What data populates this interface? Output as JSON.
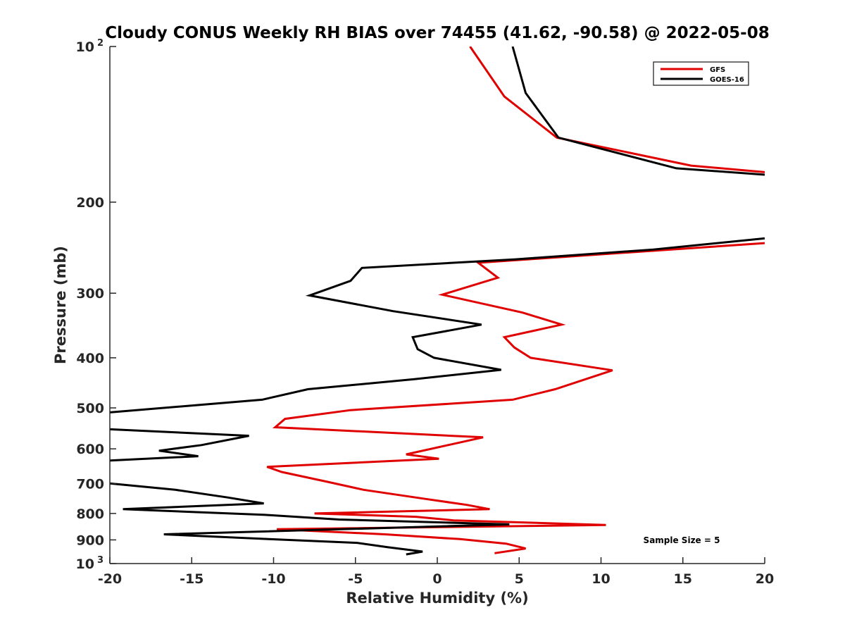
{
  "chart_data": {
    "type": "line",
    "title": "Cloudy CONUS Weekly RH BIAS over 74455 (41.62, -90.58) @ 2022-05-08",
    "xlabel": "Relative Humidity (%)",
    "ylabel": "Pressure (mb)",
    "xlim": [
      -20,
      20
    ],
    "ylim": [
      100,
      1000
    ],
    "y_scale": "log",
    "y_reversed": true,
    "grid": false,
    "legend_position": "top-right",
    "xticks": [
      "-20",
      "-15",
      "-10",
      "-5",
      "0",
      "5",
      "10",
      "15",
      "20"
    ],
    "xtick_values": [
      -20,
      -15,
      -10,
      -5,
      0,
      5,
      10,
      15,
      20
    ],
    "yticks": [
      {
        "value": 100,
        "label": "10",
        "sup": "2"
      },
      {
        "value": 200,
        "label": "200",
        "sup": ""
      },
      {
        "value": 300,
        "label": "300",
        "sup": ""
      },
      {
        "value": 400,
        "label": "400",
        "sup": ""
      },
      {
        "value": 500,
        "label": "500",
        "sup": ""
      },
      {
        "value": 600,
        "label": "600",
        "sup": ""
      },
      {
        "value": 700,
        "label": "700",
        "sup": ""
      },
      {
        "value": 800,
        "label": "800",
        "sup": ""
      },
      {
        "value": 900,
        "label": "900",
        "sup": ""
      },
      {
        "value": 1000,
        "label": "10",
        "sup": "3"
      }
    ],
    "annotation": "Sample Size = 5",
    "series": [
      {
        "name": "GFS",
        "color": "#e00000",
        "points": [
          [
            2.0,
            100
          ],
          [
            4.1,
            125
          ],
          [
            7.3,
            150
          ],
          [
            15.5,
            170
          ],
          [
            20,
            175
          ],
          [
            null,
            null
          ],
          [
            20,
            240
          ],
          [
            2.5,
            262
          ],
          [
            3.7,
            280
          ],
          [
            0.3,
            302
          ],
          [
            5.2,
            327
          ],
          [
            7.6,
            345
          ],
          [
            4.1,
            365
          ],
          [
            4.7,
            382
          ],
          [
            5.7,
            400
          ],
          [
            10.7,
            423
          ],
          [
            7.2,
            460
          ],
          [
            4.6,
            482
          ],
          [
            -5.3,
            505
          ],
          [
            -9.3,
            525
          ],
          [
            -9.9,
            545
          ],
          [
            2.8,
            570
          ],
          [
            -1.9,
            615
          ],
          [
            0.1,
            627
          ],
          [
            -10.4,
            650
          ],
          [
            -9.5,
            665
          ],
          [
            -6.7,
            695
          ],
          [
            -4.5,
            720
          ],
          [
            -0.7,
            750
          ],
          [
            1.8,
            770
          ],
          [
            3.2,
            785
          ],
          [
            -7.5,
            800
          ],
          [
            -1.3,
            812
          ],
          [
            1.0,
            825
          ],
          [
            10.3,
            842
          ],
          [
            -9.8,
            858
          ],
          [
            -3.2,
            878
          ],
          [
            1.4,
            897
          ],
          [
            4.2,
            915
          ],
          [
            5.4,
            935
          ],
          [
            3.5,
            955
          ]
        ]
      },
      {
        "name": "GOES-16",
        "color": "#000000",
        "points": [
          [
            4.6,
            100
          ],
          [
            5.4,
            123
          ],
          [
            7.4,
            150
          ],
          [
            14.6,
            172
          ],
          [
            20,
            177
          ],
          [
            null,
            null
          ],
          [
            20,
            235
          ],
          [
            13.2,
            247
          ],
          [
            4.8,
            258
          ],
          [
            -4.6,
            268
          ],
          [
            -5.3,
            284
          ],
          [
            -7.8,
            303
          ],
          [
            -2.7,
            325
          ],
          [
            2.7,
            345
          ],
          [
            -1.5,
            365
          ],
          [
            -1.2,
            385
          ],
          [
            -0.2,
            400
          ],
          [
            3.9,
            422
          ],
          [
            -1.4,
            440
          ],
          [
            -7.9,
            460
          ],
          [
            -10.7,
            482
          ],
          [
            -20,
            510
          ],
          [
            null,
            null
          ],
          [
            -20,
            550
          ],
          [
            -11.5,
            566
          ],
          [
            -14.4,
            590
          ],
          [
            -17.0,
            605
          ],
          [
            -14.6,
            620
          ],
          [
            -20,
            632
          ],
          [
            null,
            null
          ],
          [
            -20,
            700
          ],
          [
            -16.0,
            720
          ],
          [
            -12.8,
            745
          ],
          [
            -10.6,
            765
          ],
          [
            -19.2,
            785
          ],
          [
            -10.5,
            805
          ],
          [
            -6.0,
            822
          ],
          [
            4.4,
            840
          ],
          [
            -16.7,
            878
          ],
          [
            -10.3,
            897
          ],
          [
            -4.9,
            912
          ],
          [
            -3.0,
            930
          ],
          [
            -0.9,
            948
          ],
          [
            -1.9,
            960
          ]
        ]
      }
    ]
  }
}
